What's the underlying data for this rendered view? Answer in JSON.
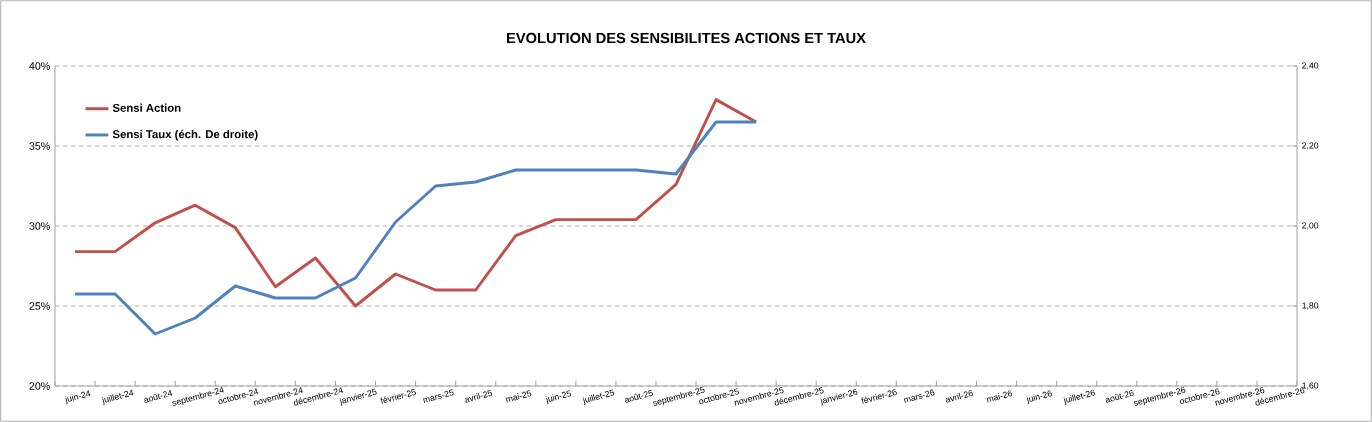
{
  "chart_data": {
    "type": "line",
    "title": "EVOLUTION DES SENSIBILITES ACTIONS ET TAUX",
    "categories": [
      "juin-24",
      "juillet-24",
      "août-24",
      "septembre-24",
      "octobre-24",
      "novembre-24",
      "décembre-24",
      "janvier-25",
      "février-25",
      "mars-25",
      "avril-25",
      "mai-25",
      "juin-25",
      "juillet-25",
      "août-25",
      "septembre-25",
      "octobre-25",
      "novembre-25",
      "décembre-25",
      "janvier-26",
      "février-26",
      "mars-26",
      "avril-26",
      "mai-26",
      "juin-26",
      "juillet-26",
      "août-26",
      "septembre-26",
      "octobre-26",
      "novembre-26",
      "décembre-26"
    ],
    "series": [
      {
        "name": "Sensi Action",
        "color": "#c0504d",
        "values": [
          28.4,
          28.4,
          30.2,
          31.3,
          29.9,
          26.2,
          28.0,
          25.0,
          27.0,
          26.0,
          26.0,
          29.4,
          30.4,
          30.4,
          30.4,
          32.6,
          37.9,
          36.5,
          null,
          null,
          null,
          null,
          null,
          null,
          null,
          null,
          null,
          null,
          null,
          null,
          null
        ]
      },
      {
        "name": "Sensi Taux (éch. De droite)",
        "color": "#4f81bd",
        "axis": "y2",
        "values": [
          1.83,
          1.83,
          1.73,
          1.77,
          1.85,
          1.82,
          1.82,
          1.87,
          2.01,
          2.1,
          2.11,
          2.14,
          2.14,
          2.14,
          2.14,
          2.13,
          2.26,
          2.26,
          null,
          null,
          null,
          null,
          null,
          null,
          null,
          null,
          null,
          null,
          null,
          null,
          null
        ]
      }
    ],
    "ylim": [
      20,
      40
    ],
    "yticks": [
      {
        "value": 20,
        "label": "20%"
      },
      {
        "value": 25,
        "label": "25%"
      },
      {
        "value": 30,
        "label": "30%"
      },
      {
        "value": 35,
        "label": "35%"
      },
      {
        "value": 40,
        "label": "40%"
      }
    ],
    "y2lim": [
      1.6,
      2.4
    ],
    "y2ticks": [
      {
        "value": 1.6,
        "label": "1,60"
      },
      {
        "value": 1.8,
        "label": "1,80"
      },
      {
        "value": 2.0,
        "label": "2,00"
      },
      {
        "value": 2.2,
        "label": "2,20"
      },
      {
        "value": 2.4,
        "label": "2,40"
      }
    ],
    "grid": "y",
    "legend": "top left",
    "line_style": "solid",
    "marker": "none"
  }
}
